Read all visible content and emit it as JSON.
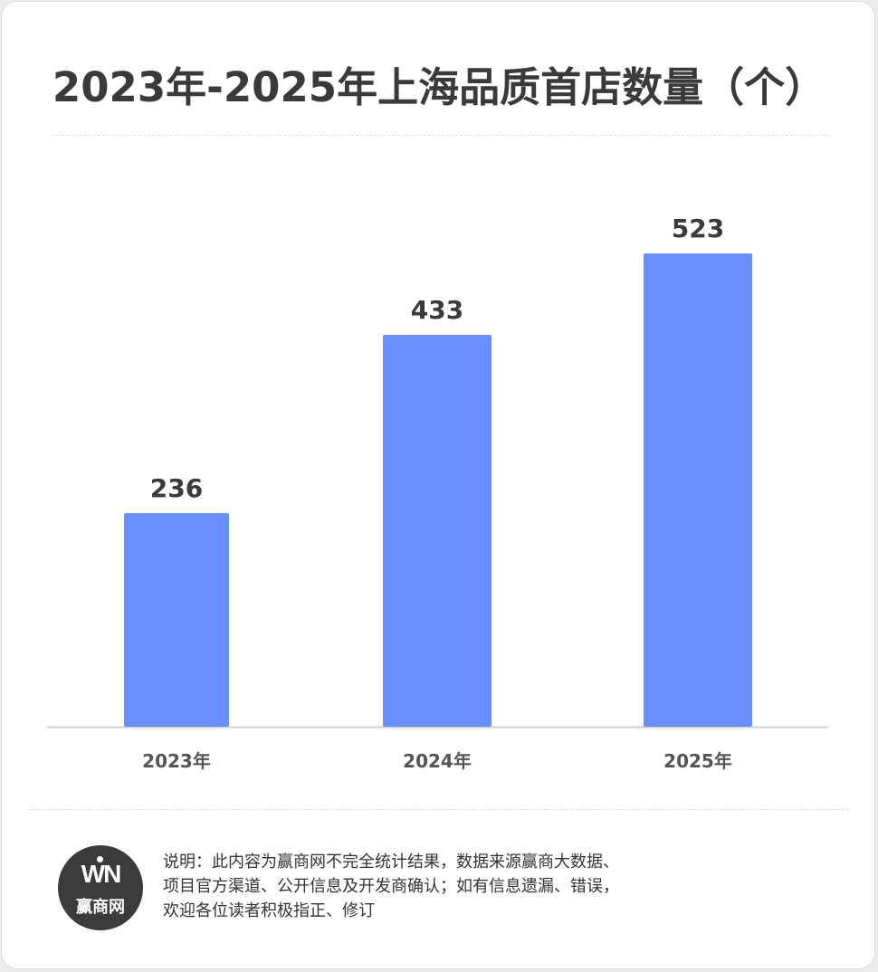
{
  "title": "2023年-2025年上海品质首店数量（个）",
  "colors": {
    "bar": "#6b8fff",
    "axis": "#cfcfcf",
    "text_dark": "#3a3a3a",
    "tick_text": "#555555",
    "logo_bg": "#3b3b3b"
  },
  "chart_data": {
    "type": "bar",
    "categories": [
      "2023年",
      "2024年",
      "2025年"
    ],
    "values": [
      236,
      433,
      523
    ],
    "title": "2023年-2025年上海品质首店数量（个）",
    "xlabel": "",
    "ylabel": "",
    "ylim": [
      0,
      600
    ],
    "grid": false,
    "data_labels": true
  },
  "logo": {
    "mark": "WN",
    "text": "赢商网",
    "icon": "winshang-logo-icon"
  },
  "note": {
    "lines": [
      "说明：此内容为赢商网不完全统计结果，数据来源赢商大数据、",
      "项目官方渠道、公开信息及开发商确认；如有信息遗漏、错误，",
      "欢迎各位读者积极指正、修订"
    ]
  }
}
